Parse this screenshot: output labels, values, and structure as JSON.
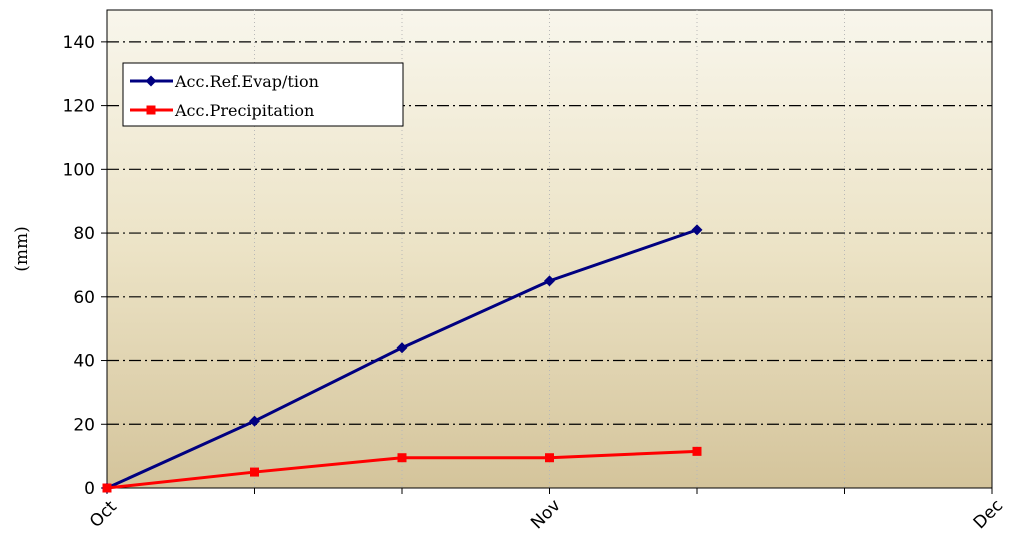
{
  "chart_data": {
    "type": "line",
    "ylabel": "(mm)",
    "ylim": [
      0,
      150
    ],
    "yticks": [
      0,
      20,
      40,
      60,
      80,
      100,
      120,
      140
    ],
    "xticks": [
      "Oct",
      "Nov",
      "Dec"
    ],
    "x_positions": [
      0,
      1,
      2,
      3,
      4,
      5,
      6
    ],
    "grid": {
      "horizontal": "dash-dot",
      "vertical": "dotted"
    },
    "legend_position": "top-left",
    "series": [
      {
        "name": "Acc.Ref.Evap/tion",
        "color": "#000080",
        "marker": "diamond",
        "x": [
          0,
          1,
          2,
          3,
          4
        ],
        "values": [
          0,
          21,
          44,
          65,
          81
        ]
      },
      {
        "name": "Acc.Precipitation",
        "color": "#ff0000",
        "marker": "square",
        "x": [
          0,
          1,
          2,
          3,
          4
        ],
        "values": [
          0,
          5,
          9.5,
          9.5,
          11.5
        ]
      }
    ]
  }
}
